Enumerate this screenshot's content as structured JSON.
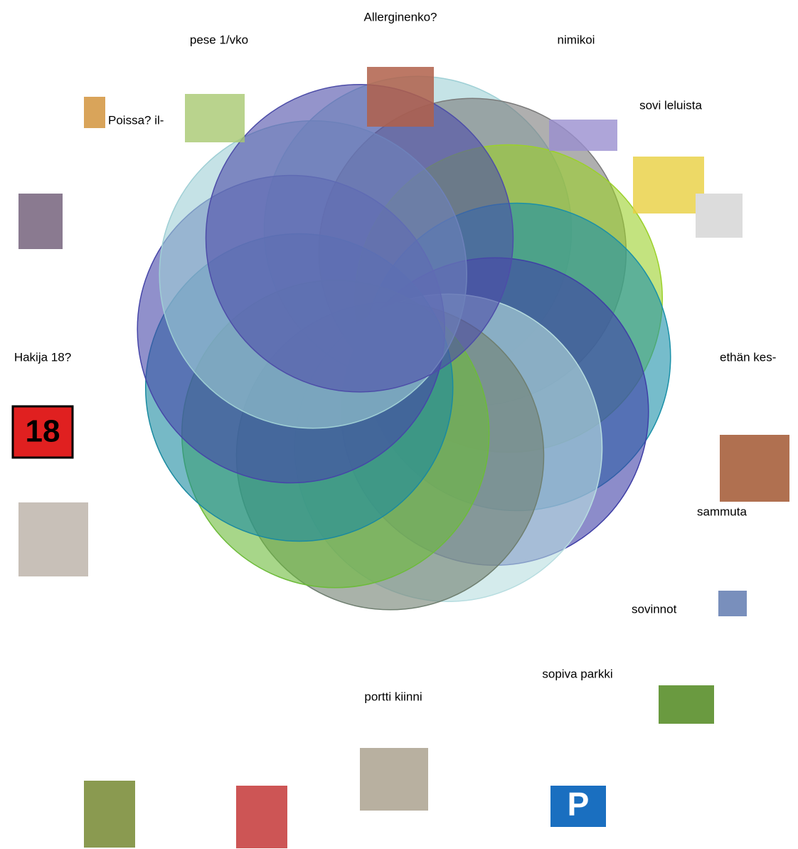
{
  "labels": [
    "Allerginenko?",
    "pese 1/vko",
    "nimikoi",
    "sovi leluista",
    "Poissa? il-",
    "Hakija 18?",
    "ethän kes-",
    "sammuta",
    "sovinnot",
    "sopiva parkki",
    "portti kiinni"
  ],
  "badge": "18"
}
